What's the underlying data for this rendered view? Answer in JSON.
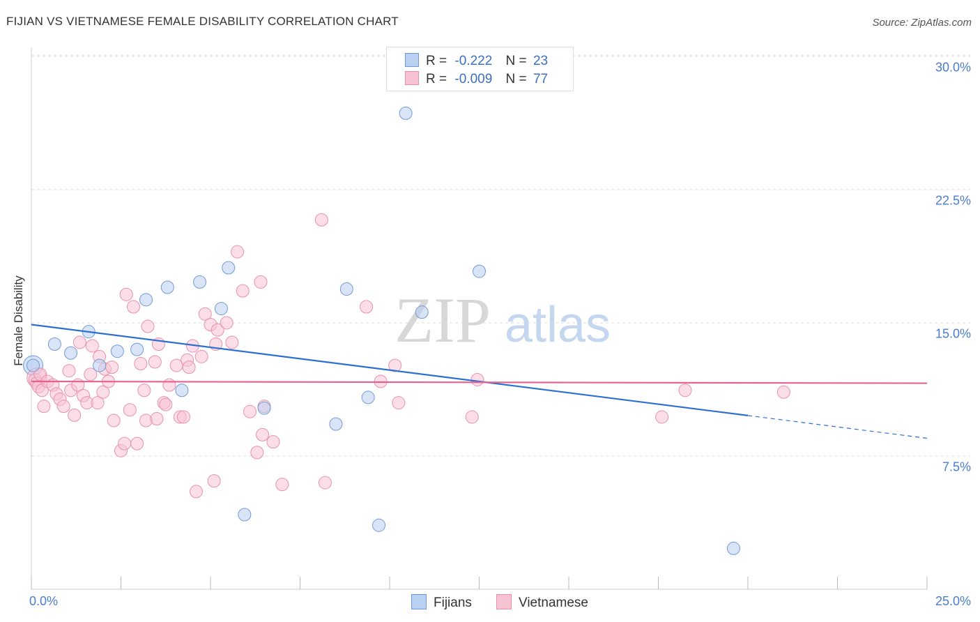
{
  "header": {
    "title": "FIJIAN VS VIETNAMESE FEMALE DISABILITY CORRELATION CHART",
    "source": "Source: ZipAtlas.com"
  },
  "watermark": {
    "zip": "ZIP",
    "atlas": "atlas"
  },
  "legend": {
    "rows": [
      {
        "name": "Fijians",
        "r_label": "R =",
        "r_value": "-0.222",
        "n_label": "N =",
        "n_value": "23"
      },
      {
        "name": "Vietnamese",
        "r_label": "R =",
        "r_value": "-0.009",
        "n_label": "N =",
        "n_value": "77"
      }
    ]
  },
  "colors": {
    "fijians_fill": "#b9d0f0",
    "fijians_stroke": "#6f9ad6",
    "fijians_line": "#2b6fd0",
    "vietnamese_fill": "#f7c3d3",
    "vietnamese_stroke": "#e890ad",
    "vietnamese_line": "#e8608e",
    "tick_label": "#4a7dd1",
    "grid": "#dddddd"
  },
  "chart_data": {
    "type": "scatter",
    "title": "FIJIAN VS VIETNAMESE FEMALE DISABILITY CORRELATION CHART",
    "xlabel": "",
    "ylabel": "Female Disability",
    "xlim": [
      0,
      25
    ],
    "ylim": [
      0,
      31
    ],
    "x_tick_labels": [
      "0.0%",
      "25.0%"
    ],
    "y_ticks": [
      7.5,
      15.0,
      22.5,
      30.0
    ],
    "y_tick_labels": [
      "7.5%",
      "15.0%",
      "22.5%",
      "30.0%"
    ],
    "grid": "horizontal dashed",
    "legend_position": "top-center",
    "series": [
      {
        "name": "Fijians",
        "r": -0.222,
        "n": 23,
        "points": [
          [
            0.05,
            12.6
          ],
          [
            0.65,
            13.8
          ],
          [
            1.1,
            13.3
          ],
          [
            1.6,
            14.5
          ],
          [
            1.9,
            12.6
          ],
          [
            2.4,
            13.4
          ],
          [
            2.95,
            13.5
          ],
          [
            3.2,
            16.3
          ],
          [
            3.8,
            17.0
          ],
          [
            4.2,
            11.2
          ],
          [
            4.7,
            17.3
          ],
          [
            5.3,
            15.8
          ],
          [
            5.5,
            18.1
          ],
          [
            5.95,
            4.2
          ],
          [
            6.5,
            10.2
          ],
          [
            8.5,
            9.3
          ],
          [
            8.8,
            16.9
          ],
          [
            9.4,
            10.8
          ],
          [
            9.7,
            3.6
          ],
          [
            10.45,
            26.8
          ],
          [
            10.9,
            15.6
          ],
          [
            12.5,
            17.9
          ],
          [
            19.6,
            2.3
          ]
        ],
        "trend": {
          "x": [
            0,
            25
          ],
          "y": [
            14.9,
            8.5
          ],
          "solid_until_x": 20
        }
      },
      {
        "name": "Vietnamese",
        "r": -0.009,
        "n": 77,
        "points": [
          [
            0.1,
            11.8
          ],
          [
            0.15,
            11.6
          ],
          [
            0.2,
            11.4
          ],
          [
            0.25,
            12.1
          ],
          [
            0.3,
            11.2
          ],
          [
            0.35,
            10.3
          ],
          [
            0.45,
            11.7
          ],
          [
            0.6,
            11.5
          ],
          [
            0.7,
            11.0
          ],
          [
            0.8,
            10.7
          ],
          [
            0.9,
            10.3
          ],
          [
            1.05,
            12.3
          ],
          [
            1.1,
            11.2
          ],
          [
            1.2,
            9.8
          ],
          [
            1.3,
            11.5
          ],
          [
            1.35,
            13.9
          ],
          [
            1.45,
            10.9
          ],
          [
            1.55,
            10.5
          ],
          [
            1.65,
            12.1
          ],
          [
            1.7,
            13.7
          ],
          [
            1.85,
            10.5
          ],
          [
            1.9,
            13.1
          ],
          [
            2.0,
            11.1
          ],
          [
            2.05,
            12.4
          ],
          [
            2.15,
            11.7
          ],
          [
            2.25,
            12.5
          ],
          [
            2.3,
            9.5
          ],
          [
            2.5,
            7.8
          ],
          [
            2.6,
            8.2
          ],
          [
            2.65,
            16.6
          ],
          [
            2.75,
            10.1
          ],
          [
            2.85,
            15.9
          ],
          [
            2.95,
            8.2
          ],
          [
            3.05,
            12.7
          ],
          [
            3.15,
            11.2
          ],
          [
            3.2,
            9.5
          ],
          [
            3.25,
            14.8
          ],
          [
            3.45,
            12.8
          ],
          [
            3.5,
            9.6
          ],
          [
            3.55,
            13.8
          ],
          [
            3.7,
            10.5
          ],
          [
            3.75,
            10.4
          ],
          [
            3.85,
            11.5
          ],
          [
            4.05,
            12.6
          ],
          [
            4.15,
            9.7
          ],
          [
            4.25,
            9.7
          ],
          [
            4.35,
            12.9
          ],
          [
            4.4,
            12.5
          ],
          [
            4.5,
            13.7
          ],
          [
            4.6,
            5.5
          ],
          [
            4.75,
            13.1
          ],
          [
            4.85,
            15.5
          ],
          [
            5.0,
            14.9
          ],
          [
            5.1,
            6.1
          ],
          [
            5.15,
            13.8
          ],
          [
            5.2,
            14.6
          ],
          [
            5.45,
            15.0
          ],
          [
            5.6,
            13.9
          ],
          [
            5.75,
            19.0
          ],
          [
            5.9,
            16.8
          ],
          [
            6.1,
            10.0
          ],
          [
            6.3,
            7.7
          ],
          [
            6.4,
            17.3
          ],
          [
            6.45,
            8.7
          ],
          [
            6.5,
            10.3
          ],
          [
            6.75,
            8.3
          ],
          [
            7.0,
            5.9
          ],
          [
            8.1,
            20.8
          ],
          [
            8.2,
            6.0
          ],
          [
            9.35,
            15.9
          ],
          [
            9.75,
            11.7
          ],
          [
            10.15,
            12.6
          ],
          [
            10.25,
            10.5
          ],
          [
            12.3,
            9.7
          ],
          [
            12.45,
            11.8
          ],
          [
            17.6,
            9.7
          ],
          [
            18.25,
            11.2
          ],
          [
            21.0,
            11.1
          ]
        ],
        "trend": {
          "x": [
            0,
            25
          ],
          "y": [
            11.7,
            11.6
          ]
        }
      }
    ]
  }
}
